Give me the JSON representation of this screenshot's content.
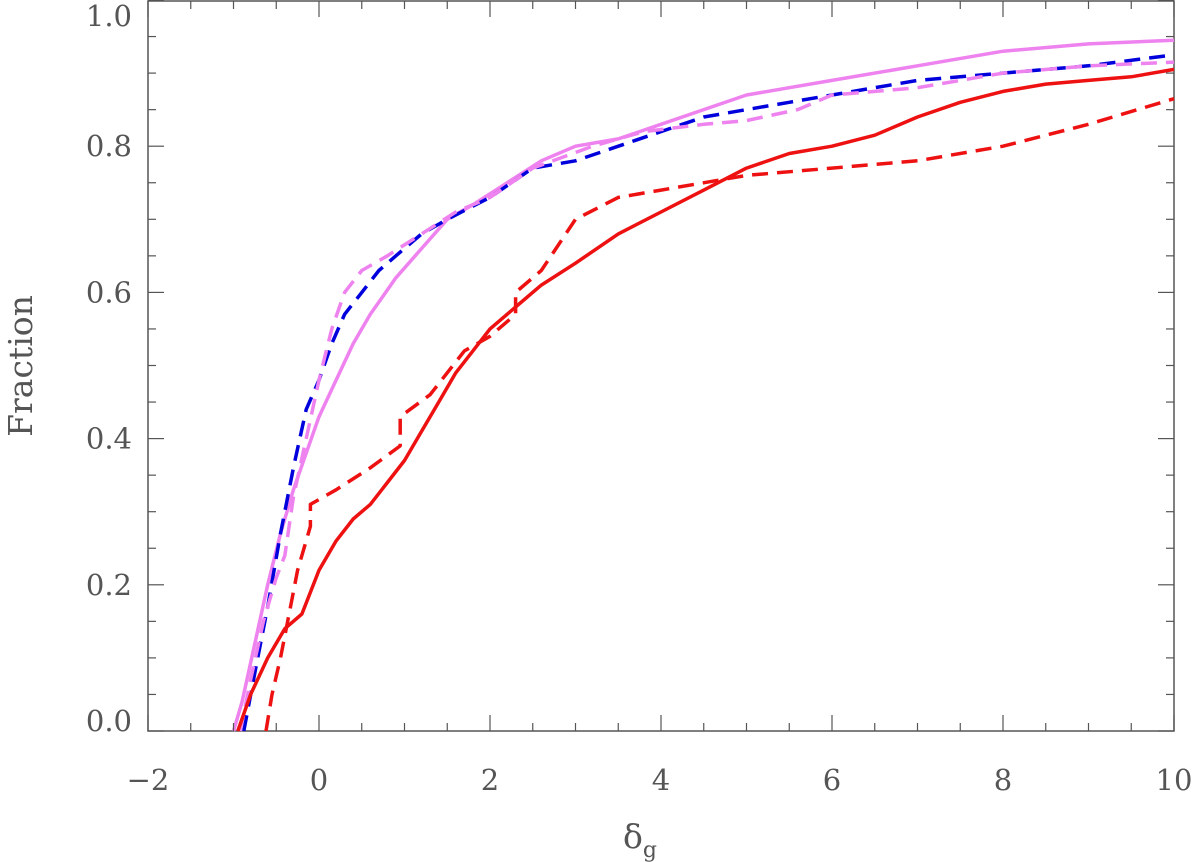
{
  "chart_data": {
    "type": "line",
    "title": "",
    "xlabel": "δ",
    "xlabel_subscript": "g",
    "ylabel": "Fraction",
    "xlim": [
      -2,
      10
    ],
    "ylim": [
      0,
      1
    ],
    "x_ticks": [
      -2,
      0,
      2,
      4,
      6,
      8,
      10
    ],
    "x_tick_labels": [
      "−2",
      "0",
      "2",
      "4",
      "6",
      "8",
      "10"
    ],
    "y_ticks": [
      0,
      0.2,
      0.4,
      0.6,
      0.8,
      1.0
    ],
    "y_tick_labels": [
      "0.0",
      "0.2",
      "0.4",
      "0.6",
      "0.8",
      "1.0"
    ],
    "grid": false,
    "legend": "none",
    "series": [
      {
        "color": "#ee82ee",
        "style": "solid",
        "points": [
          [
            -1.0,
            0.0
          ],
          [
            -0.9,
            0.04
          ],
          [
            -0.75,
            0.12
          ],
          [
            -0.6,
            0.2
          ],
          [
            -0.45,
            0.27
          ],
          [
            -0.3,
            0.33
          ],
          [
            -0.15,
            0.38
          ],
          [
            0.0,
            0.43
          ],
          [
            0.2,
            0.48
          ],
          [
            0.4,
            0.53
          ],
          [
            0.6,
            0.57
          ],
          [
            0.9,
            0.62
          ],
          [
            1.2,
            0.66
          ],
          [
            1.5,
            0.7
          ],
          [
            1.8,
            0.72
          ],
          [
            2.2,
            0.75
          ],
          [
            2.6,
            0.78
          ],
          [
            3.0,
            0.8
          ],
          [
            3.5,
            0.81
          ],
          [
            4.0,
            0.83
          ],
          [
            4.5,
            0.85
          ],
          [
            5.0,
            0.87
          ],
          [
            5.5,
            0.88
          ],
          [
            6.0,
            0.89
          ],
          [
            7.0,
            0.91
          ],
          [
            8.0,
            0.93
          ],
          [
            9.0,
            0.94
          ],
          [
            10.0,
            0.945
          ]
        ]
      },
      {
        "color": "#0000dd",
        "style": "dashed",
        "points": [
          [
            -0.88,
            0.0
          ],
          [
            -0.75,
            0.08
          ],
          [
            -0.6,
            0.17
          ],
          [
            -0.45,
            0.27
          ],
          [
            -0.3,
            0.36
          ],
          [
            -0.15,
            0.44
          ],
          [
            0.0,
            0.48
          ],
          [
            0.15,
            0.53
          ],
          [
            0.3,
            0.57
          ],
          [
            0.5,
            0.6
          ],
          [
            0.7,
            0.63
          ],
          [
            0.9,
            0.65
          ],
          [
            1.2,
            0.68
          ],
          [
            1.5,
            0.7
          ],
          [
            2.0,
            0.73
          ],
          [
            2.5,
            0.77
          ],
          [
            3.0,
            0.78
          ],
          [
            3.5,
            0.8
          ],
          [
            4.0,
            0.82
          ],
          [
            4.5,
            0.84
          ],
          [
            5.0,
            0.85
          ],
          [
            5.5,
            0.86
          ],
          [
            6.0,
            0.87
          ],
          [
            7.0,
            0.89
          ],
          [
            8.0,
            0.9
          ],
          [
            9.0,
            0.91
          ],
          [
            10.0,
            0.925
          ]
        ]
      },
      {
        "color": "#ee82ee",
        "style": "dashed",
        "points": [
          [
            -0.92,
            0.0
          ],
          [
            -0.8,
            0.07
          ],
          [
            -0.65,
            0.15
          ],
          [
            -0.5,
            0.21
          ],
          [
            -0.4,
            0.24
          ],
          [
            -0.3,
            0.32
          ],
          [
            -0.15,
            0.4
          ],
          [
            0.0,
            0.48
          ],
          [
            0.15,
            0.55
          ],
          [
            0.3,
            0.6
          ],
          [
            0.5,
            0.63
          ],
          [
            0.8,
            0.65
          ],
          [
            1.2,
            0.68
          ],
          [
            1.6,
            0.71
          ],
          [
            2.0,
            0.73
          ],
          [
            2.5,
            0.77
          ],
          [
            3.2,
            0.8
          ],
          [
            3.8,
            0.82
          ],
          [
            4.5,
            0.83
          ],
          [
            5.0,
            0.835
          ],
          [
            5.6,
            0.85
          ],
          [
            6.0,
            0.87
          ],
          [
            7.0,
            0.88
          ],
          [
            8.0,
            0.9
          ],
          [
            9.0,
            0.91
          ],
          [
            10.0,
            0.915
          ]
        ]
      },
      {
        "color": "#ee1111",
        "style": "solid",
        "points": [
          [
            -0.95,
            0.0
          ],
          [
            -0.8,
            0.05
          ],
          [
            -0.6,
            0.1
          ],
          [
            -0.4,
            0.14
          ],
          [
            -0.2,
            0.16
          ],
          [
            0.0,
            0.22
          ],
          [
            0.2,
            0.26
          ],
          [
            0.4,
            0.29
          ],
          [
            0.6,
            0.31
          ],
          [
            0.8,
            0.34
          ],
          [
            1.0,
            0.37
          ],
          [
            1.2,
            0.41
          ],
          [
            1.4,
            0.45
          ],
          [
            1.6,
            0.49
          ],
          [
            1.8,
            0.52
          ],
          [
            2.0,
            0.55
          ],
          [
            2.3,
            0.58
          ],
          [
            2.6,
            0.61
          ],
          [
            3.0,
            0.64
          ],
          [
            3.5,
            0.68
          ],
          [
            4.0,
            0.71
          ],
          [
            4.5,
            0.74
          ],
          [
            5.0,
            0.77
          ],
          [
            5.5,
            0.79
          ],
          [
            6.0,
            0.8
          ],
          [
            6.5,
            0.815
          ],
          [
            7.0,
            0.84
          ],
          [
            7.5,
            0.86
          ],
          [
            8.0,
            0.875
          ],
          [
            8.5,
            0.885
          ],
          [
            9.0,
            0.89
          ],
          [
            9.5,
            0.895
          ],
          [
            10.0,
            0.905
          ]
        ]
      },
      {
        "color": "#ee1111",
        "style": "dashed",
        "points": [
          [
            -0.62,
            0.0
          ],
          [
            -0.55,
            0.05
          ],
          [
            -0.45,
            0.1
          ],
          [
            -0.35,
            0.16
          ],
          [
            -0.25,
            0.22
          ],
          [
            -0.1,
            0.28
          ],
          [
            -0.1,
            0.31
          ],
          [
            0.2,
            0.33
          ],
          [
            0.6,
            0.36
          ],
          [
            0.95,
            0.39
          ],
          [
            0.95,
            0.43
          ],
          [
            1.3,
            0.46
          ],
          [
            1.7,
            0.52
          ],
          [
            2.0,
            0.54
          ],
          [
            2.3,
            0.57
          ],
          [
            2.3,
            0.6
          ],
          [
            2.6,
            0.63
          ],
          [
            3.0,
            0.7
          ],
          [
            3.5,
            0.73
          ],
          [
            4.0,
            0.74
          ],
          [
            5.0,
            0.76
          ],
          [
            6.0,
            0.77
          ],
          [
            7.0,
            0.78
          ],
          [
            8.0,
            0.8
          ],
          [
            9.0,
            0.83
          ],
          [
            10.0,
            0.865
          ]
        ]
      }
    ]
  }
}
